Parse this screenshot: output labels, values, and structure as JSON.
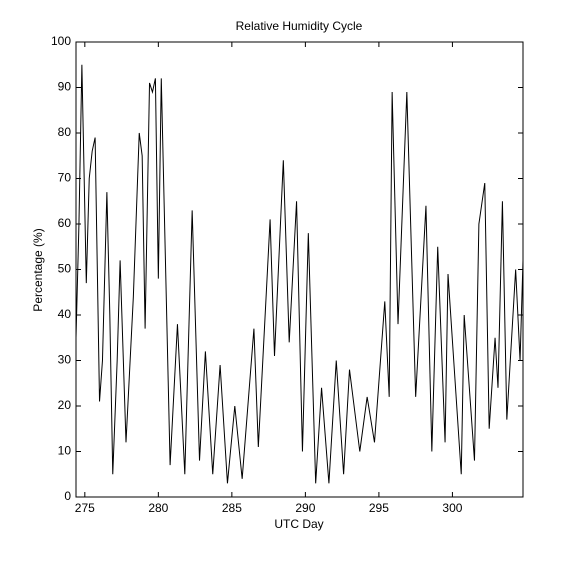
{
  "chart_data": {
    "type": "line",
    "title": "Relative Humidity Cycle",
    "x_label": "UTC Day",
    "y_label": "Percentage (%)",
    "x": [
      274.4,
      274.6,
      274.8,
      275.1,
      275.3,
      275.5,
      275.7,
      276.0,
      276.2,
      276.5,
      276.7,
      276.9,
      277.2,
      277.4,
      277.8,
      278.3,
      278.7,
      278.9,
      279.1,
      279.4,
      279.6,
      279.8,
      280.0,
      280.2,
      280.8,
      281.3,
      281.8,
      282.3,
      282.8,
      283.2,
      283.7,
      284.2,
      284.7,
      285.2,
      285.7,
      286.5,
      286.8,
      287.6,
      287.9,
      288.5,
      288.9,
      289.4,
      289.8,
      290.2,
      290.7,
      291.1,
      291.6,
      292.1,
      292.6,
      293.0,
      293.7,
      294.2,
      294.7,
      295.4,
      295.7,
      295.9,
      296.3,
      296.9,
      297.5,
      298.2,
      298.6,
      299.0,
      299.5,
      299.7,
      300.6,
      300.8,
      301.5,
      301.8,
      302.2,
      302.5,
      302.9,
      303.1,
      303.4,
      303.7,
      304.3,
      304.6,
      304.8
    ],
    "series": [
      {
        "color": "#000000",
        "values": [
          35,
          60,
          95,
          47,
          70,
          76,
          79,
          21,
          30,
          67,
          40,
          5,
          30,
          52,
          12,
          44,
          80,
          75,
          37,
          91,
          89,
          92,
          48,
          92,
          7,
          38,
          5,
          63,
          8,
          32,
          5,
          29,
          3,
          20,
          4,
          37,
          11,
          61,
          31,
          74,
          34,
          65,
          10,
          58,
          3,
          24,
          3,
          30,
          5,
          28,
          10,
          22,
          12,
          43,
          22,
          89,
          38,
          89,
          22,
          64,
          10,
          55,
          12,
          49,
          5,
          40,
          8,
          60,
          69,
          15,
          35,
          24,
          65,
          17,
          50,
          30,
          52
        ]
      }
    ],
    "xlim": [
      274.4,
      304.8
    ],
    "xticks": [
      275,
      280,
      285,
      290,
      295,
      300
    ],
    "ylim": [
      0,
      100
    ],
    "yticks": [
      0,
      10,
      20,
      30,
      40,
      50,
      60,
      70,
      80,
      90,
      100
    ],
    "grid": false
  }
}
